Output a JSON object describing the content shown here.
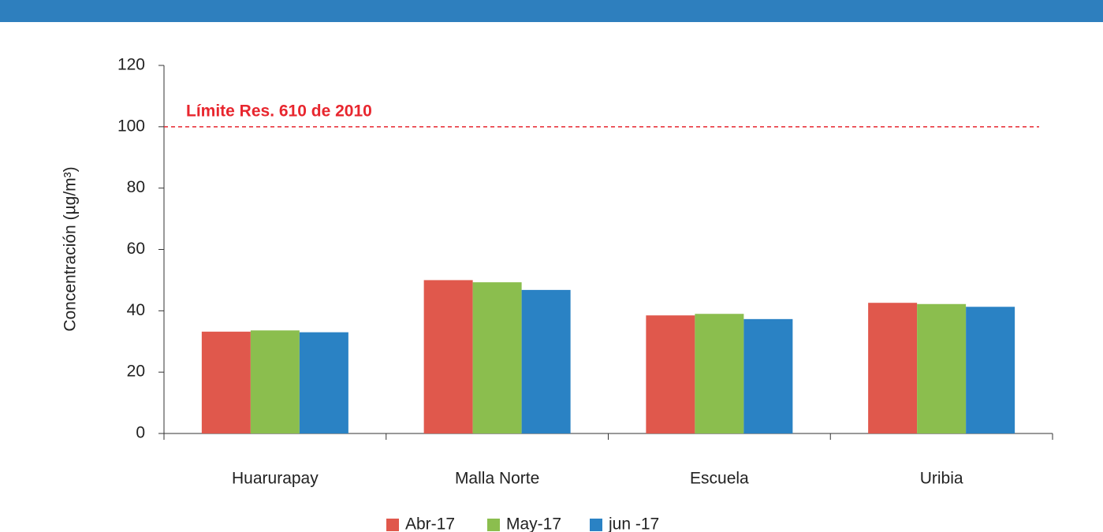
{
  "chart_data": {
    "type": "bar",
    "y_label": "Concentración (µg/m³)",
    "categories": [
      "Huarurapay",
      "Malla Norte",
      "Escuela",
      "Uribia"
    ],
    "series": [
      {
        "name": "Abr-17",
        "color": "#e0584c",
        "values": [
          33.2,
          50.0,
          38.5,
          42.6
        ]
      },
      {
        "name": "May-17",
        "color": "#8bbe4e",
        "values": [
          33.6,
          49.3,
          39.0,
          42.2
        ]
      },
      {
        "name": "jun -17",
        "color": "#2a82c4",
        "values": [
          33.0,
          46.8,
          37.3,
          41.3
        ]
      }
    ],
    "ylim": [
      0,
      120
    ],
    "yticks": [
      0,
      20,
      40,
      60,
      80,
      100,
      120
    ],
    "reference_line": {
      "value": 100,
      "label": "Límite Res. 610 de 2010",
      "color": "#e8262e"
    },
    "legend": "bottom"
  }
}
